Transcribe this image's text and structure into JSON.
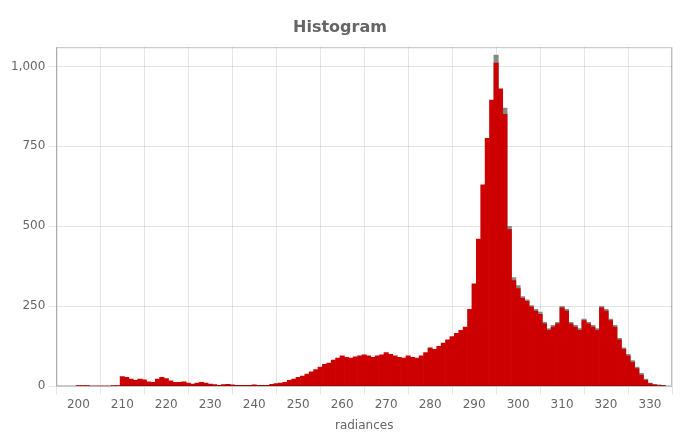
{
  "chart_data": {
    "type": "histogram",
    "title": "Histogram",
    "xlabel": "radiances",
    "xlim": [
      195,
      335
    ],
    "ylim": [
      0,
      1060
    ],
    "xticks": [
      200,
      210,
      220,
      230,
      240,
      250,
      260,
      270,
      280,
      290,
      300,
      310,
      320,
      330
    ],
    "yticks": [
      0,
      250,
      500,
      750,
      {
        "value": 1000,
        "label": "1,000"
      }
    ],
    "grid": true,
    "series": [
      {
        "color": "#888888",
        "x": [
          295,
          296,
          297,
          298,
          299,
          300,
          301,
          302,
          303,
          304,
          305,
          306,
          307,
          308,
          309,
          310,
          311,
          312,
          313,
          314,
          315,
          316,
          317,
          318,
          319,
          320,
          321,
          322,
          323,
          324,
          325,
          326,
          327,
          328,
          329,
          330,
          331,
          332,
          333
        ],
        "values": [
          1035,
          915,
          870,
          500,
          340,
          315,
          280,
          270,
          252,
          240,
          232,
          200,
          180,
          190,
          200,
          250,
          240,
          200,
          190,
          180,
          210,
          200,
          190,
          180,
          250,
          240,
          210,
          190,
          150,
          120,
          100,
          80,
          60,
          40,
          22,
          10,
          6,
          4,
          2
        ]
      },
      {
        "color": "#cc0000",
        "x": [
          200,
          201,
          202,
          203,
          204,
          205,
          206,
          207,
          208,
          209,
          210,
          211,
          212,
          213,
          214,
          215,
          216,
          217,
          218,
          219,
          220,
          221,
          222,
          223,
          224,
          225,
          226,
          227,
          228,
          229,
          230,
          231,
          232,
          233,
          234,
          235,
          236,
          237,
          238,
          239,
          240,
          241,
          242,
          243,
          244,
          245,
          246,
          247,
          248,
          249,
          250,
          251,
          252,
          253,
          254,
          255,
          256,
          257,
          258,
          259,
          260,
          261,
          262,
          263,
          264,
          265,
          266,
          267,
          268,
          269,
          270,
          271,
          272,
          273,
          274,
          275,
          276,
          277,
          278,
          279,
          280,
          281,
          282,
          283,
          284,
          285,
          286,
          287,
          288,
          289,
          290,
          291,
          292,
          293,
          294,
          295,
          296,
          297,
          298,
          299,
          300,
          301,
          302,
          303,
          304,
          305,
          306,
          307,
          308,
          309,
          310,
          311,
          312,
          313,
          314,
          315,
          316,
          317,
          318,
          319,
          320,
          321,
          322,
          323,
          324,
          325,
          326,
          327,
          328,
          329,
          330,
          331,
          332,
          333
        ],
        "values": [
          2,
          1,
          1,
          0,
          0,
          0,
          0,
          0,
          1,
          2,
          30,
          28,
          22,
          18,
          22,
          20,
          14,
          12,
          22,
          28,
          24,
          17,
          12,
          12,
          14,
          10,
          7,
          10,
          12,
          10,
          7,
          5,
          3,
          5,
          6,
          4,
          3,
          3,
          3,
          3,
          4,
          3,
          3,
          3,
          6,
          8,
          10,
          12,
          18,
          22,
          28,
          32,
          38,
          45,
          52,
          60,
          68,
          72,
          82,
          88,
          95,
          90,
          88,
          92,
          95,
          98,
          95,
          90,
          95,
          98,
          105,
          100,
          95,
          90,
          88,
          95,
          90,
          88,
          95,
          105,
          120,
          115,
          125,
          135,
          145,
          155,
          165,
          175,
          185,
          240,
          320,
          460,
          630,
          775,
          895,
          1010,
          930,
          850,
          490,
          330,
          305,
          275,
          265,
          248,
          235,
          225,
          195,
          175,
          185,
          195,
          245,
          235,
          195,
          185,
          175,
          205,
          195,
          185,
          175,
          245,
          235,
          205,
          185,
          145,
          115,
          95,
          75,
          55,
          35,
          18,
          8,
          4,
          2,
          1
        ]
      }
    ]
  }
}
